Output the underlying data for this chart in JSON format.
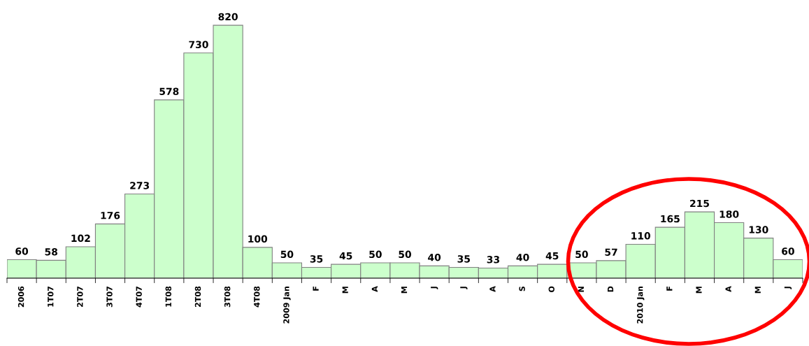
{
  "chart_data": {
    "type": "bar",
    "categories": [
      "2006",
      "1T07",
      "2T07",
      "3T07",
      "4T07",
      "1T08",
      "2T08",
      "3T08",
      "4T08",
      "2009 Jan",
      "F",
      "M",
      "A",
      "M",
      "J",
      "J",
      "A",
      "S",
      "O",
      "N",
      "D",
      "2010 Jan",
      "F",
      "M",
      "A",
      "M",
      "J"
    ],
    "values": [
      60,
      58,
      102,
      176,
      273,
      578,
      730,
      820,
      100,
      50,
      35,
      45,
      50,
      50,
      40,
      35,
      33,
      40,
      45,
      50,
      57,
      110,
      165,
      215,
      180,
      130,
      60
    ],
    "color": "#ccffcc",
    "data_labels": true,
    "grid": false,
    "legend": false
  }
}
